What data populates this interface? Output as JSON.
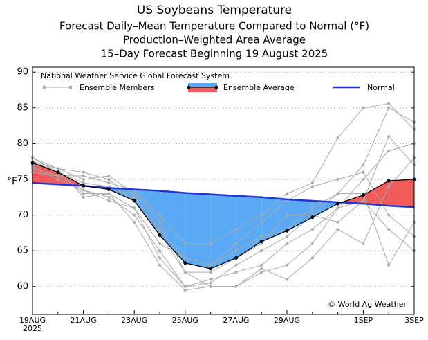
{
  "chart_data": {
    "type": "line",
    "title": "US Soybeans Temperature",
    "subtitles": [
      "Forecast Daily–Mean Temperature Compared to Normal (°F)",
      "Production–Weighted Area Average",
      "15–Day Forecast Beginning 19 August 2025"
    ],
    "y_label": "°F",
    "legend_title": "National Weather Service Global Forecast System",
    "credit": "© World Ag Weather",
    "year_label": "2025",
    "categories": [
      "19AUG",
      null,
      "21AUG",
      null,
      "23AUG",
      null,
      "25AUG",
      null,
      "27AUG",
      null,
      "29AUG",
      null,
      null,
      "1SEP",
      null,
      "3SEP"
    ],
    "ylim": [
      56.1,
      90.7
    ],
    "yticks": [
      60,
      65,
      70,
      75,
      80,
      85,
      90
    ],
    "grid": true,
    "ensemble_members": {
      "name": "Ensemble Members",
      "color": "#a9a9a9",
      "members": [
        [
          77.5,
          76.5,
          75,
          75.5,
          73,
          69,
          62,
          60,
          60,
          62,
          63,
          66,
          71,
          75,
          79,
          80
        ],
        [
          76.5,
          75.5,
          73.5,
          72.5,
          70,
          65,
          60,
          60.5,
          63,
          65,
          67,
          70,
          73,
          77,
          85,
          83
        ],
        [
          78,
          76,
          74.5,
          74,
          72.5,
          68,
          64,
          63,
          66,
          69,
          72,
          74,
          75,
          76,
          70,
          67
        ],
        [
          77,
          76.5,
          72.5,
          73,
          71,
          64,
          60,
          61,
          62,
          63,
          66,
          68,
          71,
          72,
          68,
          65
        ],
        [
          76,
          75.5,
          75.5,
          74.5,
          73.5,
          70,
          66,
          66,
          68,
          70,
          73,
          74.5,
          80.8,
          85,
          85.6,
          82
        ],
        [
          77.5,
          76,
          73,
          73,
          69,
          63,
          59.5,
          60,
          60,
          62.5,
          61,
          64,
          68,
          66,
          74,
          78
        ],
        [
          76.8,
          75,
          73.5,
          72,
          71,
          66,
          64,
          63,
          65,
          67,
          68,
          71,
          73,
          73,
          63,
          69
        ],
        [
          78,
          76.5,
          76,
          75,
          72,
          67.5,
          62,
          62,
          64,
          66,
          70,
          70,
          69,
          72,
          81,
          77
        ]
      ]
    },
    "series": [
      {
        "name": "Ensemble Average",
        "color": "#000000",
        "above_color": "#f05a5a",
        "below_color": "#5aaaf5",
        "values": [
          77.3,
          76.0,
          74.1,
          73.6,
          72.0,
          67.2,
          63.3,
          62.5,
          64.0,
          66.3,
          67.8,
          69.7,
          71.6,
          72.8,
          74.8,
          75.0
        ]
      },
      {
        "name": "Normal",
        "color": "#2233dd",
        "values": [
          74.5,
          74.3,
          74.1,
          73.8,
          73.6,
          73.4,
          73.1,
          72.9,
          72.7,
          72.5,
          72.2,
          72.0,
          71.8,
          71.6,
          71.3,
          71.1
        ]
      }
    ]
  }
}
